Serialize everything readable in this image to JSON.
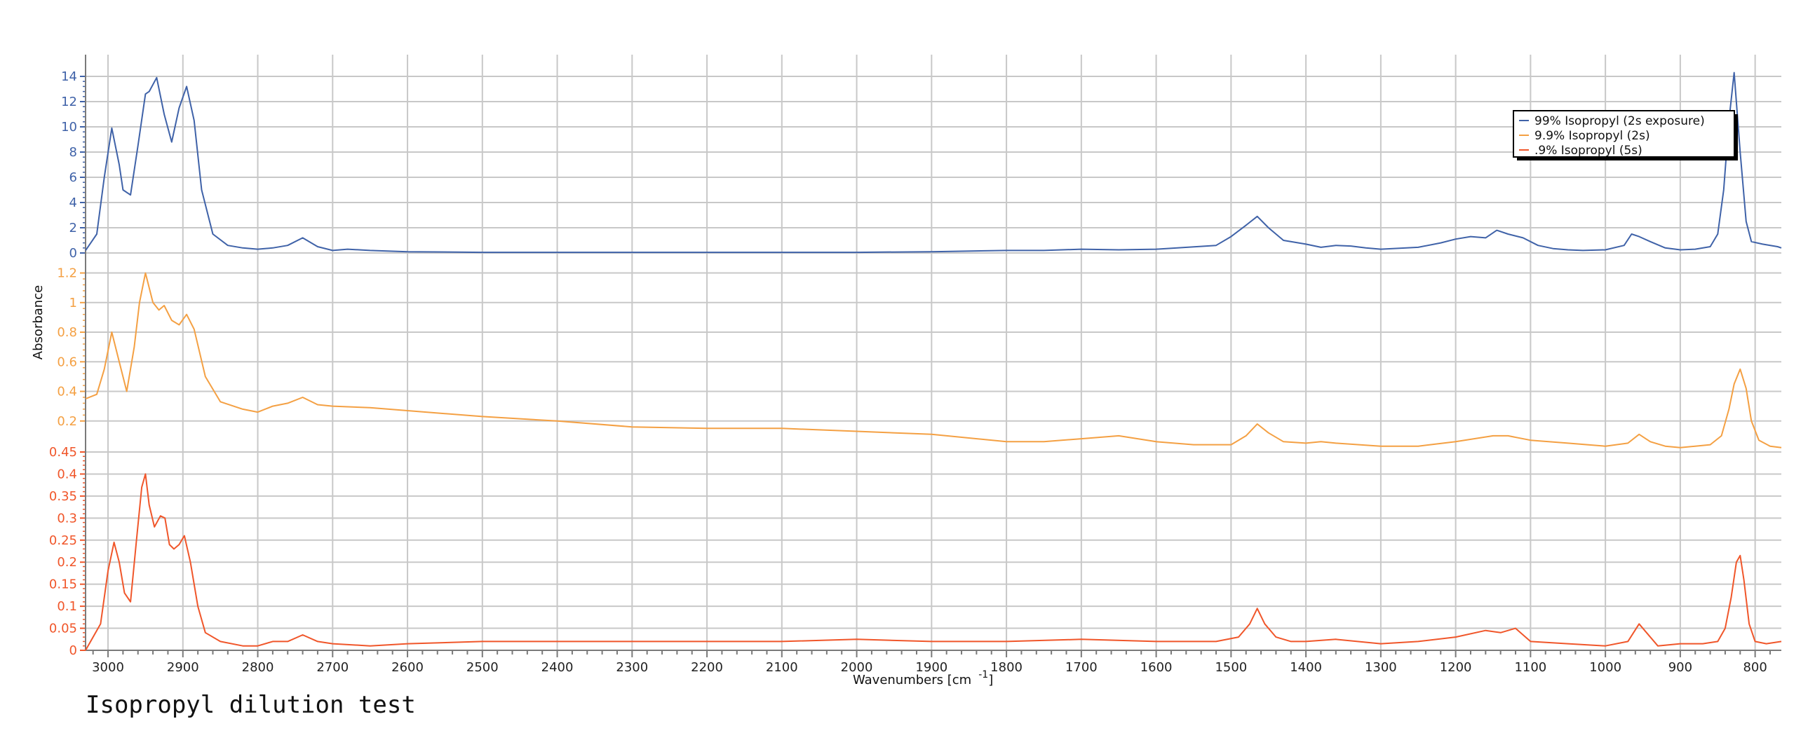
{
  "caption": "Isopropyl dilution test",
  "chart_data": {
    "type": "line",
    "title": "",
    "xlabel": "Wavenumbers [cm",
    "xlabel_sup": "-1",
    "xlabel_suffix": "]",
    "ylabel": "Absorbance",
    "x_reversed": true,
    "xlim": [
      3030,
      765
    ],
    "x_ticks": [
      3000,
      2900,
      2800,
      2700,
      2600,
      2500,
      2400,
      2300,
      2200,
      2100,
      2000,
      1900,
      1800,
      1700,
      1600,
      1500,
      1400,
      1300,
      1200,
      1100,
      1000,
      900,
      800
    ],
    "x_tick_labels": [
      "3000",
      "2900",
      "2800",
      "2700",
      "2600",
      "2500",
      "2400",
      "2300",
      "2200",
      "2100",
      "2000",
      "1900",
      "1800",
      "1700",
      "1600",
      "1500",
      "1400",
      "1300",
      "1200",
      "1100",
      "1000",
      "900",
      "800"
    ],
    "grid": true,
    "legend_position": "top-right",
    "panels": [
      {
        "series_index": 0,
        "ylim": [
          0,
          14.5
        ],
        "y_ticks": [
          0,
          2,
          4,
          6,
          8,
          10,
          12,
          14
        ],
        "y_tick_labels": [
          "0",
          "2",
          "4",
          "6",
          "8",
          "10",
          "12",
          "14"
        ]
      },
      {
        "series_index": 1,
        "ylim": [
          0,
          1.25
        ],
        "y_ticks": [
          0.2,
          0.4,
          0.6,
          0.8,
          1,
          1.2
        ],
        "y_tick_labels": [
          "0.2",
          "0.4",
          "0.6",
          "0.8",
          "1",
          "1.2"
        ]
      },
      {
        "series_index": 2,
        "ylim": [
          0,
          0.45
        ],
        "y_ticks": [
          0,
          0.05,
          0.1,
          0.15,
          0.2,
          0.25,
          0.3,
          0.35,
          0.4,
          0.45
        ],
        "y_tick_labels": [
          "0",
          "0.05",
          "0.1",
          "0.15",
          "0.2",
          "0.25",
          "0.3",
          "0.35",
          "0.4",
          "0.45"
        ]
      }
    ],
    "series": [
      {
        "name": "99% Isopropyl (2s exposure)",
        "color": "#3f62a8",
        "x": [
          3030,
          3015,
          3005,
          2995,
          2985,
          2980,
          2970,
          2960,
          2950,
          2945,
          2935,
          2925,
          2915,
          2905,
          2895,
          2885,
          2875,
          2860,
          2840,
          2820,
          2800,
          2780,
          2760,
          2740,
          2720,
          2700,
          2680,
          2650,
          2600,
          2500,
          2450,
          2400,
          2300,
          2200,
          2100,
          2000,
          1900,
          1800,
          1750,
          1700,
          1650,
          1600,
          1520,
          1500,
          1480,
          1465,
          1450,
          1430,
          1400,
          1380,
          1360,
          1340,
          1320,
          1300,
          1250,
          1220,
          1200,
          1180,
          1160,
          1145,
          1130,
          1110,
          1090,
          1070,
          1050,
          1030,
          1000,
          975,
          965,
          955,
          940,
          920,
          900,
          880,
          860,
          850,
          842,
          835,
          828,
          820,
          812,
          805,
          790,
          770,
          765
        ],
        "y": [
          0.2,
          1.5,
          6.0,
          9.9,
          7.0,
          5.0,
          4.6,
          8.5,
          12.6,
          12.8,
          13.9,
          11.0,
          8.8,
          11.5,
          13.2,
          10.5,
          5.0,
          1.5,
          0.6,
          0.4,
          0.3,
          0.4,
          0.6,
          1.2,
          0.5,
          0.2,
          0.3,
          0.2,
          0.1,
          0.05,
          0.05,
          0.05,
          0.05,
          0.05,
          0.05,
          0.05,
          0.1,
          0.2,
          0.2,
          0.3,
          0.25,
          0.3,
          0.6,
          1.3,
          2.2,
          2.9,
          2.0,
          1.0,
          0.7,
          0.45,
          0.6,
          0.55,
          0.4,
          0.3,
          0.45,
          0.8,
          1.1,
          1.3,
          1.2,
          1.8,
          1.5,
          1.2,
          0.6,
          0.35,
          0.25,
          0.2,
          0.25,
          0.6,
          1.5,
          1.3,
          0.9,
          0.4,
          0.25,
          0.3,
          0.5,
          1.5,
          5.0,
          10.5,
          14.3,
          8.0,
          2.5,
          0.9,
          0.7,
          0.5,
          0.4
        ]
      },
      {
        "name": "9.9% Isopropyl (2s)",
        "color": "#f4a043",
        "x": [
          3030,
          3015,
          3005,
          2995,
          2985,
          2975,
          2965,
          2958,
          2950,
          2940,
          2932,
          2925,
          2915,
          2905,
          2895,
          2885,
          2870,
          2850,
          2820,
          2800,
          2780,
          2760,
          2740,
          2720,
          2700,
          2650,
          2600,
          2500,
          2400,
          2300,
          2200,
          2100,
          2000,
          1900,
          1800,
          1750,
          1700,
          1650,
          1600,
          1550,
          1500,
          1480,
          1465,
          1450,
          1430,
          1400,
          1380,
          1360,
          1300,
          1250,
          1200,
          1150,
          1130,
          1100,
          1050,
          1000,
          970,
          955,
          940,
          920,
          900,
          880,
          860,
          845,
          835,
          828,
          820,
          812,
          805,
          795,
          780,
          765
        ],
        "y": [
          0.35,
          0.38,
          0.55,
          0.8,
          0.6,
          0.4,
          0.7,
          1.0,
          1.2,
          1.0,
          0.95,
          0.98,
          0.88,
          0.85,
          0.92,
          0.82,
          0.5,
          0.33,
          0.28,
          0.26,
          0.3,
          0.32,
          0.36,
          0.31,
          0.3,
          0.29,
          0.27,
          0.23,
          0.2,
          0.16,
          0.15,
          0.15,
          0.13,
          0.11,
          0.06,
          0.06,
          0.08,
          0.1,
          0.06,
          0.04,
          0.04,
          0.1,
          0.18,
          0.12,
          0.06,
          0.05,
          0.06,
          0.05,
          0.03,
          0.03,
          0.06,
          0.1,
          0.1,
          0.07,
          0.05,
          0.03,
          0.05,
          0.11,
          0.06,
          0.03,
          0.02,
          0.03,
          0.04,
          0.1,
          0.28,
          0.45,
          0.55,
          0.42,
          0.2,
          0.07,
          0.03,
          0.02
        ]
      },
      {
        "name": ".9% Isopropyl (5s)",
        "color": "#f0562a",
        "x": [
          3030,
          3020,
          3010,
          3000,
          2992,
          2985,
          2978,
          2970,
          2962,
          2955,
          2950,
          2945,
          2938,
          2930,
          2924,
          2918,
          2912,
          2905,
          2898,
          2890,
          2880,
          2870,
          2850,
          2820,
          2800,
          2780,
          2760,
          2740,
          2720,
          2700,
          2650,
          2600,
          2500,
          2400,
          2300,
          2200,
          2100,
          2000,
          1900,
          1800,
          1700,
          1600,
          1520,
          1490,
          1475,
          1465,
          1455,
          1440,
          1420,
          1400,
          1360,
          1300,
          1250,
          1200,
          1160,
          1140,
          1120,
          1100,
          1050,
          1000,
          970,
          955,
          945,
          930,
          900,
          870,
          850,
          840,
          832,
          825,
          820,
          815,
          808,
          800,
          785,
          765
        ],
        "y": [
          0.0,
          0.03,
          0.06,
          0.18,
          0.245,
          0.2,
          0.13,
          0.11,
          0.25,
          0.37,
          0.4,
          0.33,
          0.28,
          0.305,
          0.3,
          0.24,
          0.23,
          0.24,
          0.26,
          0.2,
          0.1,
          0.04,
          0.02,
          0.01,
          0.01,
          0.02,
          0.02,
          0.035,
          0.02,
          0.015,
          0.01,
          0.015,
          0.02,
          0.02,
          0.02,
          0.02,
          0.02,
          0.025,
          0.02,
          0.02,
          0.025,
          0.02,
          0.02,
          0.03,
          0.06,
          0.095,
          0.06,
          0.03,
          0.02,
          0.02,
          0.025,
          0.015,
          0.02,
          0.03,
          0.045,
          0.04,
          0.05,
          0.02,
          0.015,
          0.01,
          0.02,
          0.06,
          0.04,
          0.01,
          0.015,
          0.015,
          0.02,
          0.05,
          0.12,
          0.2,
          0.215,
          0.16,
          0.06,
          0.02,
          0.015,
          0.02
        ]
      }
    ]
  }
}
